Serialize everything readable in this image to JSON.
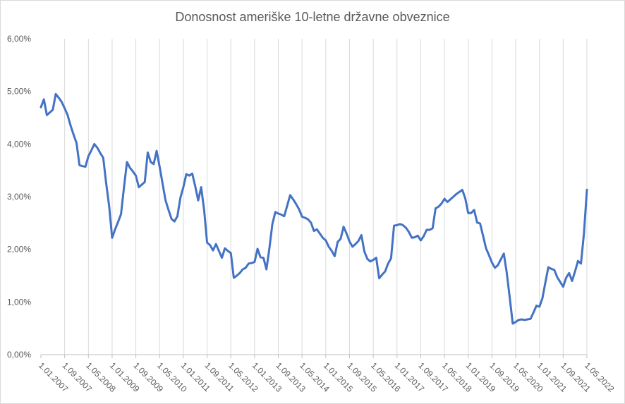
{
  "chart_data": {
    "type": "line",
    "title": "Donosnost ameriške 10-letne državne obveznice",
    "xlabel": "",
    "ylabel": "",
    "ylim": [
      0,
      6
    ],
    "yticks": [
      "0,00%",
      "1,00%",
      "2,00%",
      "3,00%",
      "4,00%",
      "5,00%",
      "6,00%"
    ],
    "x_start": "1.01.2007",
    "x_tick_labels": [
      "1.01.2007",
      "1.09.2007",
      "1.05.2008",
      "1.01.2009",
      "1.09.2009",
      "1.05.2010",
      "1.01.2011",
      "1.09.2011",
      "1.05.2012",
      "1.01.2013",
      "1.09.2013",
      "1.05.2014",
      "1.01.2015",
      "1.09.2015",
      "1.05.2016",
      "1.01.2017",
      "1.09.2017",
      "1.05.2018",
      "1.01.2019",
      "1.09.2019",
      "1.05.2020",
      "1.01.2021",
      "1.09.2021",
      "1.05.2022"
    ],
    "grid": "vertical",
    "series": [
      {
        "color": "#4472c4",
        "values": [
          4.7,
          4.85,
          4.55,
          4.6,
          4.65,
          4.95,
          4.88,
          4.8,
          4.68,
          4.55,
          4.35,
          4.18,
          4.02,
          3.6,
          3.58,
          3.57,
          3.77,
          3.88,
          4.0,
          3.93,
          3.83,
          3.74,
          3.25,
          2.82,
          2.22,
          2.38,
          2.52,
          2.67,
          3.18,
          3.66,
          3.55,
          3.48,
          3.4,
          3.18,
          3.23,
          3.28,
          3.84,
          3.66,
          3.62,
          3.87,
          3.57,
          3.25,
          2.93,
          2.75,
          2.58,
          2.53,
          2.63,
          2.98,
          3.18,
          3.43,
          3.4,
          3.44,
          3.2,
          2.93,
          3.18,
          2.75,
          2.13,
          2.08,
          1.98,
          2.1,
          1.97,
          1.84,
          2.02,
          1.97,
          1.93,
          1.46,
          1.5,
          1.55,
          1.62,
          1.65,
          1.73,
          1.74,
          1.76,
          2.01,
          1.85,
          1.84,
          1.62,
          2.02,
          2.48,
          2.71,
          2.68,
          2.66,
          2.63,
          2.83,
          3.03,
          2.95,
          2.86,
          2.76,
          2.62,
          2.6,
          2.57,
          2.51,
          2.35,
          2.38,
          2.3,
          2.22,
          2.17,
          2.05,
          1.97,
          1.87,
          2.14,
          2.2,
          2.43,
          2.3,
          2.15,
          2.05,
          2.1,
          2.16,
          2.27,
          1.96,
          1.82,
          1.77,
          1.8,
          1.84,
          1.45,
          1.52,
          1.58,
          1.73,
          1.83,
          2.45,
          2.46,
          2.48,
          2.46,
          2.41,
          2.33,
          2.22,
          2.23,
          2.26,
          2.17,
          2.25,
          2.37,
          2.37,
          2.4,
          2.78,
          2.81,
          2.87,
          2.96,
          2.9,
          2.95,
          3.0,
          3.05,
          3.09,
          3.13,
          2.97,
          2.69,
          2.69,
          2.75,
          2.51,
          2.49,
          2.26,
          2.02,
          1.89,
          1.75,
          1.65,
          1.7,
          1.81,
          1.92,
          1.55,
          1.08,
          0.59,
          0.62,
          0.66,
          0.67,
          0.66,
          0.67,
          0.68,
          0.8,
          0.93,
          0.91,
          1.07,
          1.37,
          1.66,
          1.63,
          1.61,
          1.47,
          1.38,
          1.29,
          1.46,
          1.55,
          1.4,
          1.58,
          1.78,
          1.73,
          2.3,
          3.13
        ]
      }
    ]
  }
}
